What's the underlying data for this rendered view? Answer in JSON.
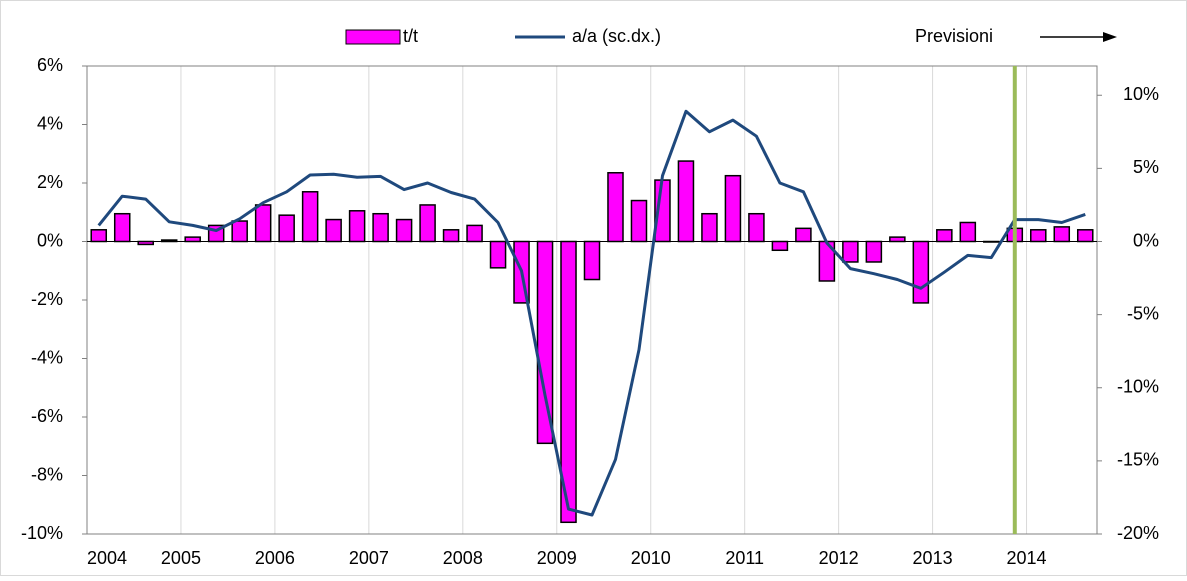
{
  "chart_data": {
    "type": "bar_line",
    "categories": [
      "2004",
      null,
      null,
      null,
      "2005",
      null,
      null,
      null,
      "2006",
      null,
      null,
      null,
      "2007",
      null,
      null,
      null,
      "2008",
      null,
      null,
      null,
      "2009",
      null,
      null,
      null,
      "2010",
      null,
      null,
      null,
      "2011",
      null,
      null,
      null,
      "2012",
      null,
      null,
      null,
      "2013",
      null,
      null,
      null,
      "2014",
      null,
      null
    ],
    "series": [
      {
        "name": "t/t",
        "type": "bar",
        "color": "#ff00ff",
        "values": [
          0.4,
          0.95,
          -0.1,
          0.05,
          0.15,
          0.55,
          0.7,
          1.25,
          0.9,
          1.7,
          0.75,
          1.05,
          0.95,
          0.75,
          1.25,
          0.4,
          0.55,
          -0.9,
          -2.1,
          -6.9,
          -9.6,
          -1.3,
          2.35,
          1.4,
          2.1,
          2.75,
          0.95,
          2.25,
          0.95,
          -0.3,
          0.45,
          -1.35,
          -0.7,
          -0.7,
          0.15,
          -2.1,
          0.4,
          0.65,
          0.0,
          0.45,
          0.4,
          0.5,
          0.4
        ]
      },
      {
        "name": "a/a (sc.dx.)",
        "type": "line",
        "axis": "y2",
        "color": "#1f497d",
        "values": [
          1.1,
          3.1,
          2.9,
          1.35,
          1.1,
          0.75,
          1.55,
          2.65,
          3.4,
          4.55,
          4.6,
          4.4,
          4.45,
          3.55,
          4.0,
          3.35,
          2.9,
          1.3,
          -2.0,
          -10.5,
          -18.3,
          -18.7,
          -14.9,
          -7.4,
          4.5,
          8.9,
          7.5,
          8.3,
          7.2,
          4.0,
          3.4,
          -0.1,
          -1.85,
          -2.2,
          -2.6,
          -3.2,
          -2.1,
          -0.95,
          -1.1,
          1.5,
          1.5,
          1.3,
          1.85
        ]
      }
    ],
    "ylim": [
      -10,
      6
    ],
    "yticks": [
      {
        "value": -10,
        "label": "-10%"
      },
      {
        "value": -8,
        "label": "-8%"
      },
      {
        "value": -6,
        "label": "-6%"
      },
      {
        "value": -4,
        "label": "-4%"
      },
      {
        "value": -2,
        "label": "-2%"
      },
      {
        "value": 0,
        "label": "0%"
      },
      {
        "value": 2,
        "label": "2%"
      },
      {
        "value": 4,
        "label": "4%"
      },
      {
        "value": 6,
        "label": "6%"
      }
    ],
    "y2lim": [
      -20,
      12
    ],
    "y2ticks": [
      {
        "value": -20,
        "label": "-20%"
      },
      {
        "value": -15,
        "label": "-15%"
      },
      {
        "value": -10,
        "label": "-10%"
      },
      {
        "value": -5,
        "label": "-5%"
      },
      {
        "value": 0,
        "label": "0%"
      },
      {
        "value": 5,
        "label": "5%"
      },
      {
        "value": 10,
        "label": "10%"
      }
    ],
    "forecast_label": "Previsioni",
    "forecast_color": "#9bbb59",
    "grid": true
  }
}
